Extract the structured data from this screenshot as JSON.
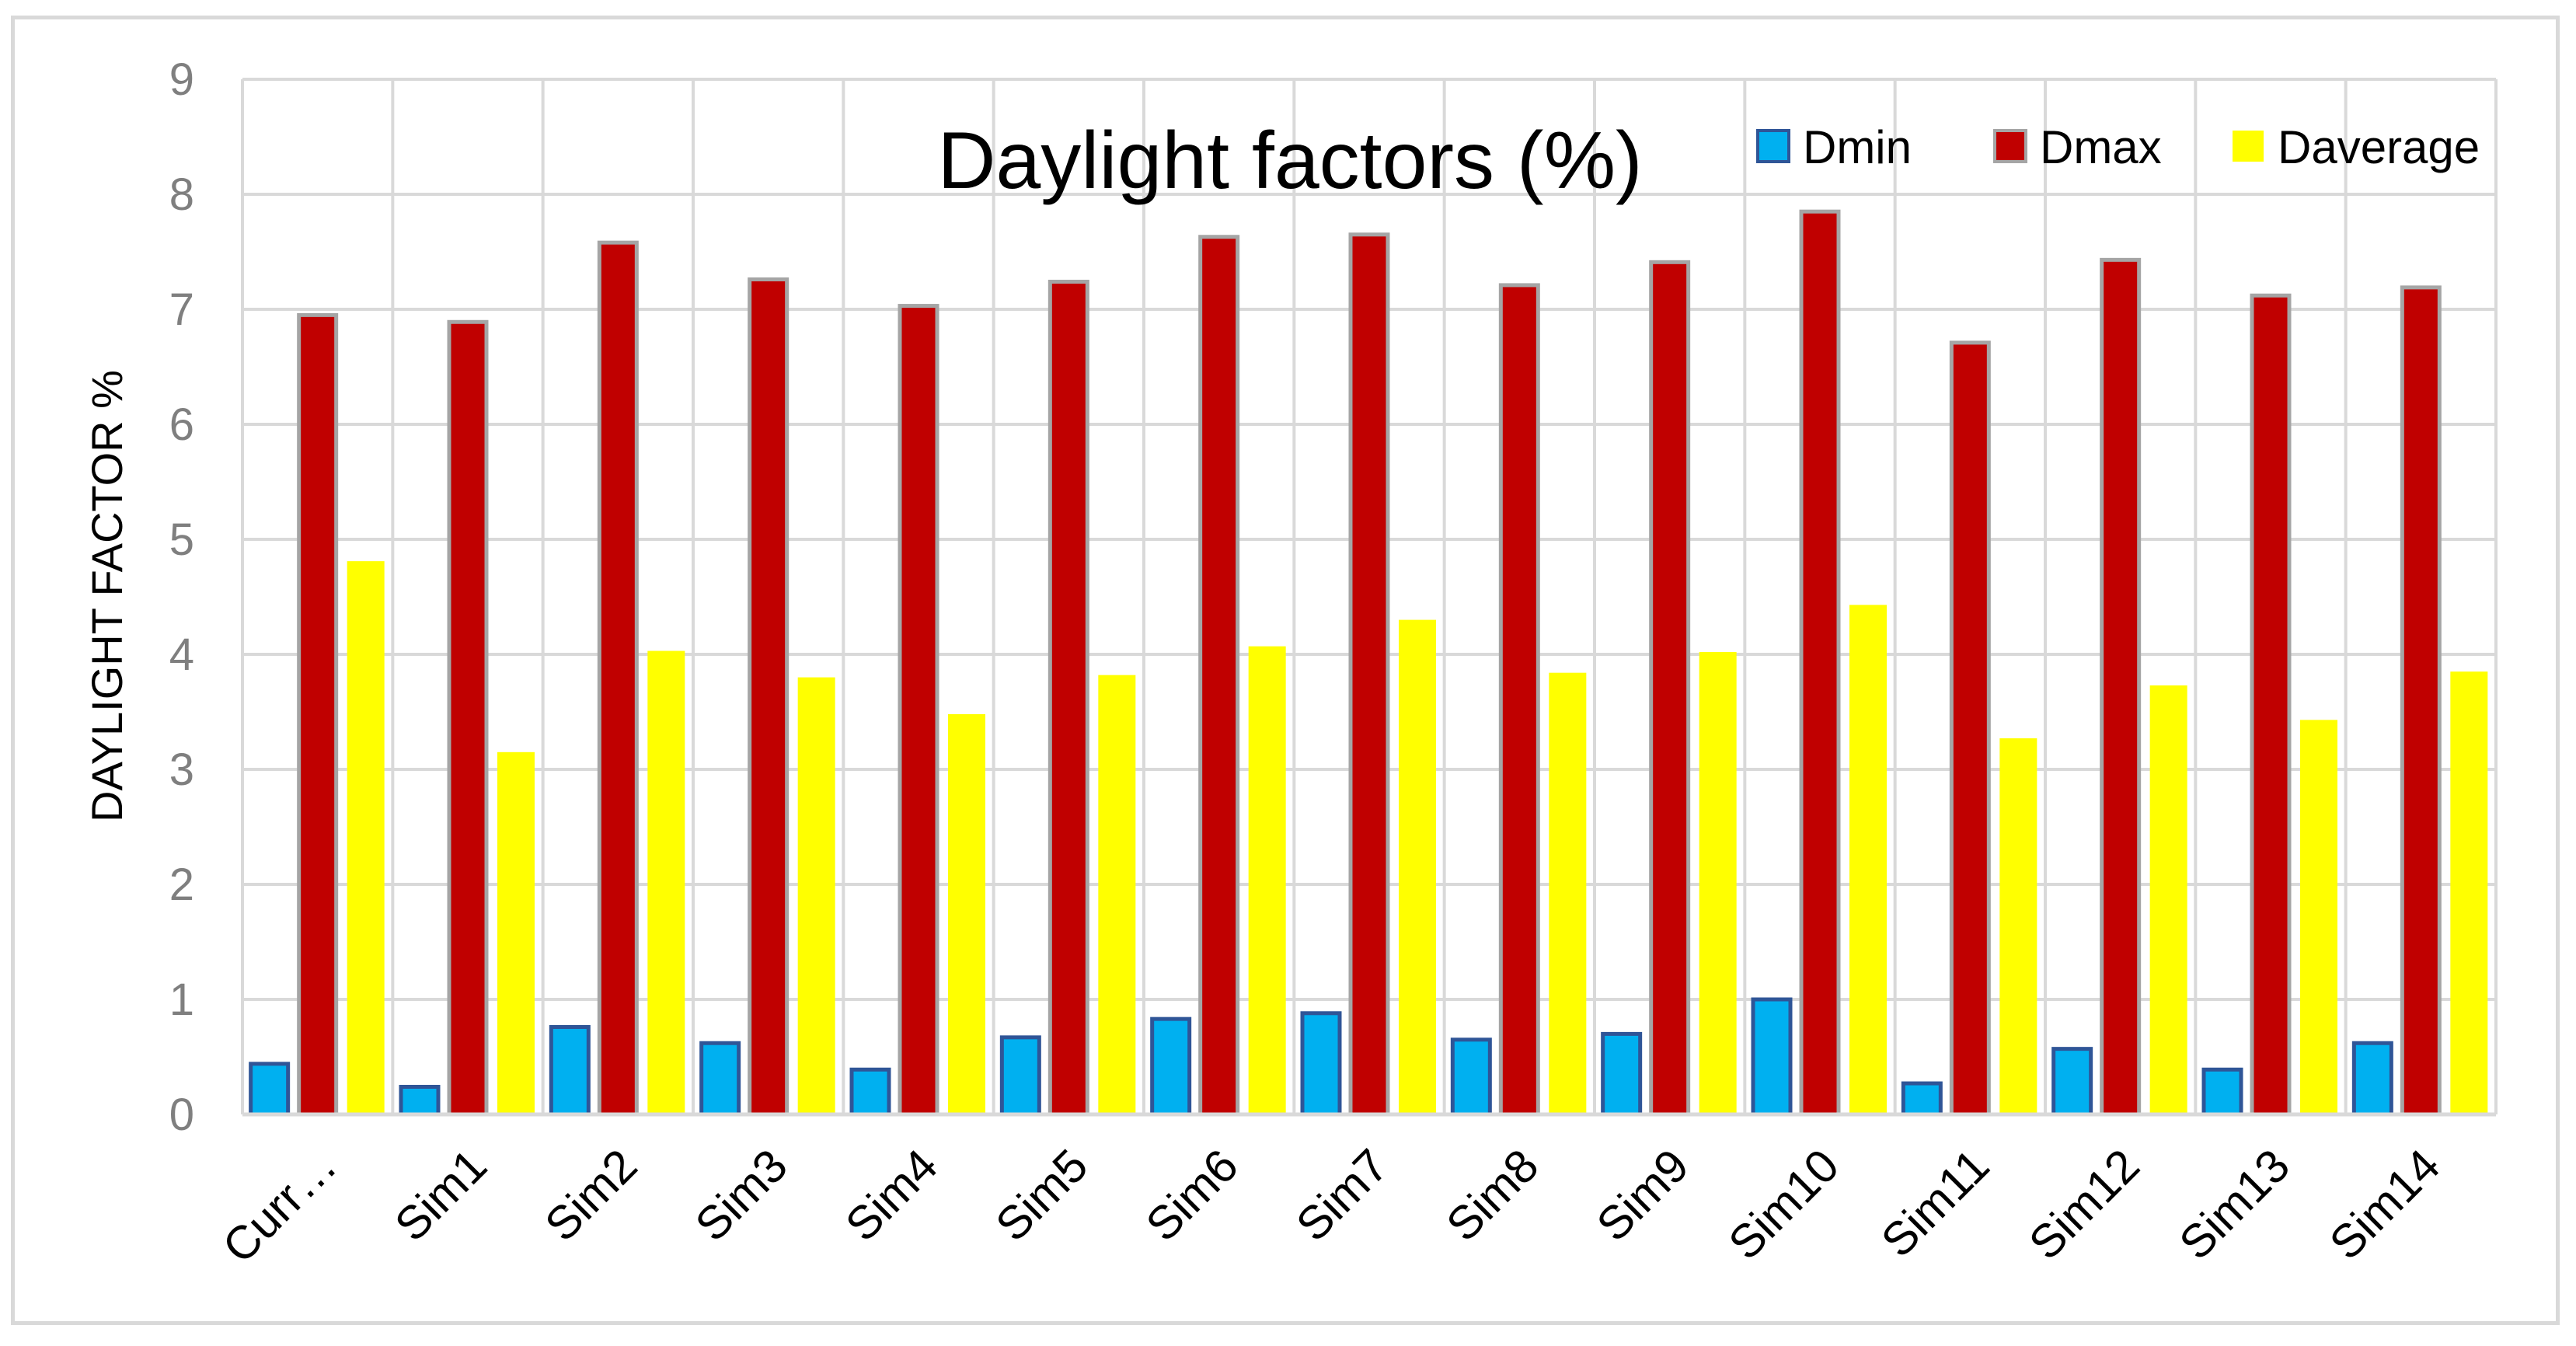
{
  "chart_data": {
    "type": "bar",
    "title": "Daylight factors (%)",
    "xlabel": "",
    "ylabel": "DAYLIGHT FACTOR %",
    "ylim": [
      0,
      9
    ],
    "yticks": [
      0,
      1,
      2,
      3,
      4,
      5,
      6,
      7,
      8,
      9
    ],
    "grid": true,
    "legend_position": "top-right",
    "categories": [
      "Curr…",
      "Sim1",
      "Sim2",
      "Sim3",
      "Sim4",
      "Sim5",
      "Sim6",
      "Sim7",
      "Sim8",
      "Sim9",
      "Sim10",
      "Sim11",
      "Sim12",
      "Sim13",
      "Sim14"
    ],
    "series": [
      {
        "name": "Dmin",
        "color": "#00b0f0",
        "values": [
          0.44,
          0.24,
          0.76,
          0.62,
          0.39,
          0.67,
          0.83,
          0.88,
          0.65,
          0.7,
          1.0,
          0.27,
          0.57,
          0.39,
          0.62
        ]
      },
      {
        "name": "Dmax",
        "color": "#c00000",
        "values": [
          6.95,
          6.89,
          7.58,
          7.26,
          7.03,
          7.24,
          7.63,
          7.65,
          7.21,
          7.41,
          7.85,
          6.71,
          7.43,
          7.12,
          7.19
        ]
      },
      {
        "name": "Daverage",
        "color": "#ffff00",
        "values": [
          4.81,
          3.15,
          4.03,
          3.8,
          3.48,
          3.82,
          4.07,
          4.3,
          3.84,
          4.02,
          4.43,
          3.27,
          3.73,
          3.43,
          3.85
        ]
      }
    ]
  }
}
